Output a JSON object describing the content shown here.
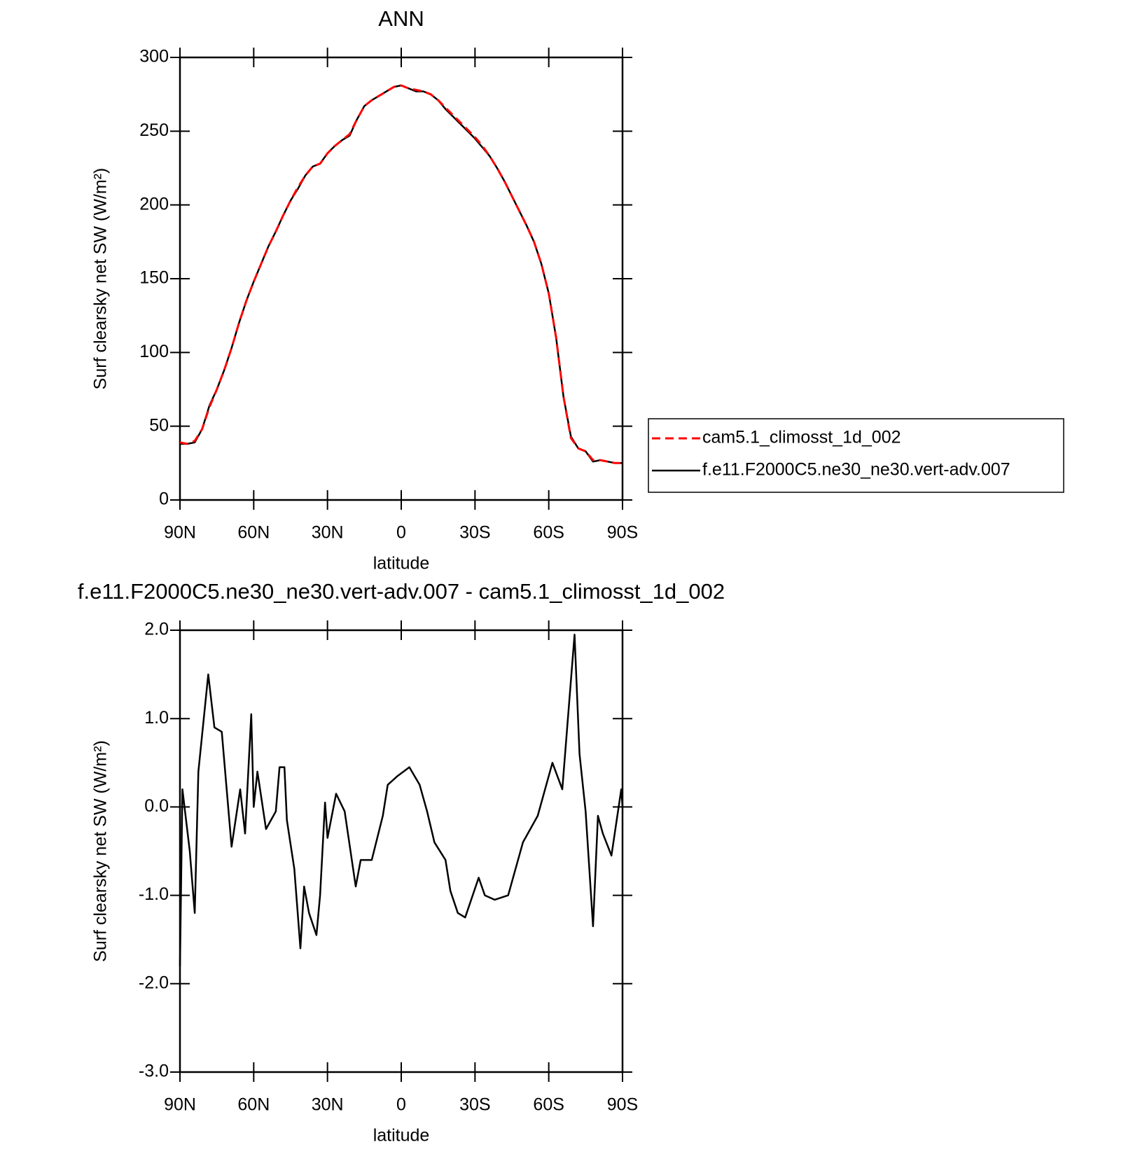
{
  "chart_data": [
    {
      "type": "line",
      "title": "ANN",
      "x_label": "latitude",
      "y_label": "Surf clearsky net SW (W/m²)",
      "x": [
        90,
        87,
        84,
        81,
        78,
        75,
        72,
        69,
        66,
        63,
        60,
        57,
        54,
        51,
        48,
        45,
        42,
        39,
        36,
        33,
        30,
        27,
        24,
        21,
        18,
        15,
        12,
        9,
        6,
        3,
        0,
        -3,
        -6,
        -9,
        -12,
        -15,
        -18,
        -21,
        -24,
        -27,
        -30,
        -33,
        -36,
        -39,
        -42,
        -45,
        -48,
        -51,
        -54,
        -57,
        -60,
        -63,
        -66,
        -69,
        -72,
        -75,
        -78,
        -81,
        -84,
        -87,
        -90
      ],
      "series": [
        {
          "name": "cam5.1_climosst_1d_002",
          "color": "#ff0000",
          "dashed": true,
          "values": [
            39,
            38,
            40,
            48,
            63,
            75,
            88,
            103,
            120,
            135,
            148,
            160,
            172,
            182,
            193,
            203,
            212,
            220,
            226,
            228,
            235,
            240,
            244,
            248,
            258,
            267,
            271,
            274,
            277,
            280,
            281,
            279,
            278,
            277,
            275,
            271,
            266,
            261,
            256,
            251,
            246,
            240,
            233,
            225,
            216,
            206,
            196,
            186,
            175,
            160,
            140,
            110,
            70,
            42,
            35,
            33,
            27,
            27,
            26,
            25,
            25
          ]
        },
        {
          "name": "f.e11.F2000C5.ne30_ne30.vert-adv.007",
          "color": "#000000",
          "dashed": false,
          "values": [
            38,
            38,
            39,
            48,
            64,
            75,
            88,
            103,
            120,
            135,
            148,
            160,
            172,
            182,
            193,
            203,
            211,
            220,
            226,
            228,
            235,
            240,
            244,
            247,
            258,
            267,
            271,
            274,
            277,
            280,
            281,
            279,
            277,
            277,
            275,
            271,
            265,
            260,
            255,
            250,
            245,
            239,
            233,
            225,
            216,
            206,
            196,
            186,
            175,
            160,
            140,
            110,
            70,
            43,
            35,
            33,
            26,
            27,
            26,
            25,
            25
          ]
        }
      ],
      "xlim": [
        90,
        -90
      ],
      "xticks": [
        {
          "value": 90,
          "label": "90N"
        },
        {
          "value": 60,
          "label": "60N"
        },
        {
          "value": 30,
          "label": "30N"
        },
        0,
        {
          "value": -30,
          "label": "30S"
        },
        {
          "value": -60,
          "label": "60S"
        },
        {
          "value": -90,
          "label": "90S"
        }
      ],
      "ylim": [
        0,
        300
      ],
      "yticks": [
        0,
        50,
        100,
        150,
        200,
        250,
        300
      ],
      "legend": "right"
    },
    {
      "type": "line",
      "title": "f.e11.F2000C5.ne30_ne30.vert-adv.007 - cam5.1_climosst_1d_002",
      "x_label": "latitude",
      "y_label": "Surf clearsky net SW (W/m²)",
      "x": [
        90,
        89,
        86,
        84,
        82.5,
        78.5,
        76,
        73,
        69,
        65.5,
        63.5,
        61,
        60,
        58.5,
        55,
        51,
        49.5,
        47.5,
        46.5,
        43.5,
        41,
        39.5,
        37.5,
        34.5,
        33,
        31,
        30,
        26.5,
        23,
        18.5,
        16.5,
        12,
        7.5,
        5.5,
        1.5,
        -3.3,
        -7.5,
        -10.5,
        -13.5,
        -18,
        -20,
        -23,
        -26,
        -31.5,
        -34,
        -38,
        -43.5,
        -49.5,
        -55.5,
        -61.5,
        -65.5,
        -67.5,
        -70.5,
        -72.5,
        -75,
        -78,
        -80,
        -82,
        -85.5,
        -89.5,
        -90
      ],
      "values": [
        -1.8,
        0.2,
        -0.5,
        -1.2,
        0.4,
        1.5,
        0.9,
        0.85,
        -0.45,
        0.2,
        -0.3,
        1.05,
        0,
        0.4,
        -0.25,
        -0.05,
        0.45,
        0.45,
        -0.15,
        -0.7,
        -1.6,
        -0.9,
        -1.2,
        -1.45,
        -1.0,
        0.05,
        -0.35,
        0.15,
        -0.05,
        -0.9,
        -0.6,
        -0.6,
        -0.1,
        0.25,
        0.35,
        0.45,
        0.25,
        -0.05,
        -0.4,
        -0.6,
        -0.95,
        -1.2,
        -1.25,
        -0.8,
        -1.0,
        -1.05,
        -1.0,
        -0.4,
        -0.1,
        0.5,
        0.2,
        0.9,
        1.95,
        0.6,
        -0.05,
        -1.35,
        -0.1,
        -0.3,
        -0.55,
        0.2,
        0.0
      ],
      "color": "#000000",
      "xlim": [
        90,
        -90
      ],
      "xticks": [
        {
          "value": 90,
          "label": "90N"
        },
        {
          "value": 60,
          "label": "60N"
        },
        {
          "value": 30,
          "label": "30N"
        },
        0,
        {
          "value": -30,
          "label": "30S"
        },
        {
          "value": -60,
          "label": "60S"
        },
        {
          "value": -90,
          "label": "90S"
        }
      ],
      "ylim": [
        -3,
        2
      ],
      "yticks": [
        {
          "value": -3,
          "label": "-3.0"
        },
        {
          "value": -2,
          "label": "-2.0"
        },
        {
          "value": -1,
          "label": "-1.0"
        },
        {
          "value": 0,
          "label": "0.0"
        },
        {
          "value": 1,
          "label": "1.0"
        },
        {
          "value": 2,
          "label": "2.0"
        }
      ]
    }
  ]
}
